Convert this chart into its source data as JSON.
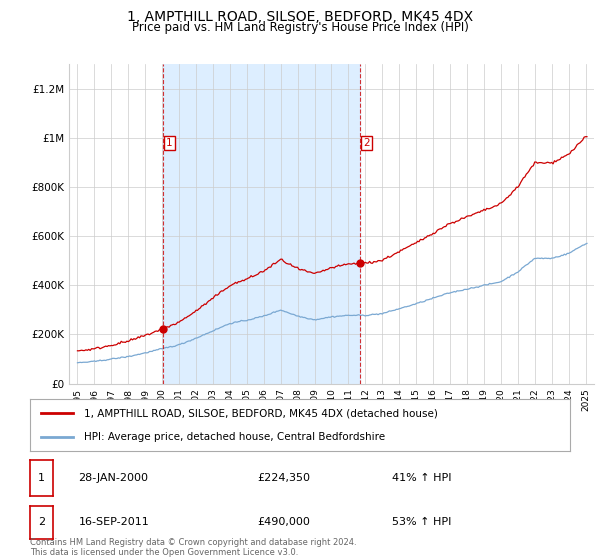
{
  "title": "1, AMPTHILL ROAD, SILSOE, BEDFORD, MK45 4DX",
  "subtitle": "Price paid vs. HM Land Registry's House Price Index (HPI)",
  "title_fontsize": 10,
  "subtitle_fontsize": 8.5,
  "bg_color": "#ffffff",
  "plot_bg_color": "#ffffff",
  "shaded_bg_color": "#ddeeff",
  "grid_color": "#cccccc",
  "red_color": "#cc0000",
  "blue_color": "#7aa8d2",
  "sale1_x": 2000.07,
  "sale1_y": 224350,
  "sale2_x": 2011.71,
  "sale2_y": 490000,
  "ylim_min": 0,
  "ylim_max": 1300000,
  "xlim_min": 1994.5,
  "xlim_max": 2025.5,
  "legend_red": "1, AMPTHILL ROAD, SILSOE, BEDFORD, MK45 4DX (detached house)",
  "legend_blue": "HPI: Average price, detached house, Central Bedfordshire",
  "table_row1": [
    "1",
    "28-JAN-2000",
    "£224,350",
    "41% ↑ HPI"
  ],
  "table_row2": [
    "2",
    "16-SEP-2011",
    "£490,000",
    "53% ↑ HPI"
  ],
  "footer": "Contains HM Land Registry data © Crown copyright and database right 2024.\nThis data is licensed under the Open Government Licence v3.0.",
  "yticks": [
    0,
    200000,
    400000,
    600000,
    800000,
    1000000,
    1200000
  ],
  "ytick_labels": [
    "£0",
    "£200K",
    "£400K",
    "£600K",
    "£800K",
    "£1M",
    "£1.2M"
  ],
  "xticks": [
    1995,
    1996,
    1997,
    1998,
    1999,
    2000,
    2001,
    2002,
    2003,
    2004,
    2005,
    2006,
    2007,
    2008,
    2009,
    2010,
    2011,
    2012,
    2013,
    2014,
    2015,
    2016,
    2017,
    2018,
    2019,
    2020,
    2021,
    2022,
    2023,
    2024,
    2025
  ]
}
